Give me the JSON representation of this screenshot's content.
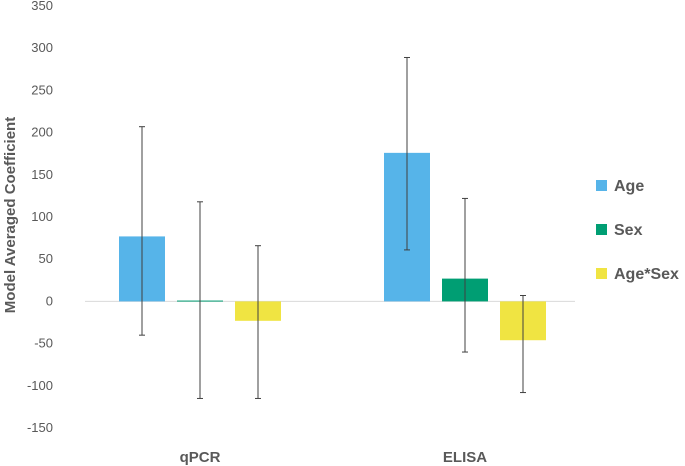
{
  "chart_data": {
    "type": "bar",
    "title": "",
    "xlabel": "",
    "ylabel": "Model Averaged Coefficient",
    "ylim": [
      -150,
      350
    ],
    "yticks": [
      350,
      300,
      250,
      200,
      150,
      100,
      50,
      0,
      -50,
      -100,
      -150
    ],
    "categories": [
      "qPCR",
      "ELISA"
    ],
    "series": [
      {
        "name": "Age",
        "color": "#56b4e9",
        "values": [
          77,
          176
        ],
        "error_low": [
          -40,
          61
        ],
        "error_high": [
          207,
          289
        ]
      },
      {
        "name": "Sex",
        "color": "#009e73",
        "values": [
          1,
          27
        ],
        "error_low": [
          -115,
          -60
        ],
        "error_high": [
          118,
          122
        ]
      },
      {
        "name": "Age*Sex",
        "color": "#f0e442",
        "values": [
          -23,
          -46
        ],
        "error_low": [
          -115,
          -108
        ],
        "error_high": [
          66,
          7
        ]
      }
    ],
    "grid": false,
    "legend_position": "right"
  }
}
